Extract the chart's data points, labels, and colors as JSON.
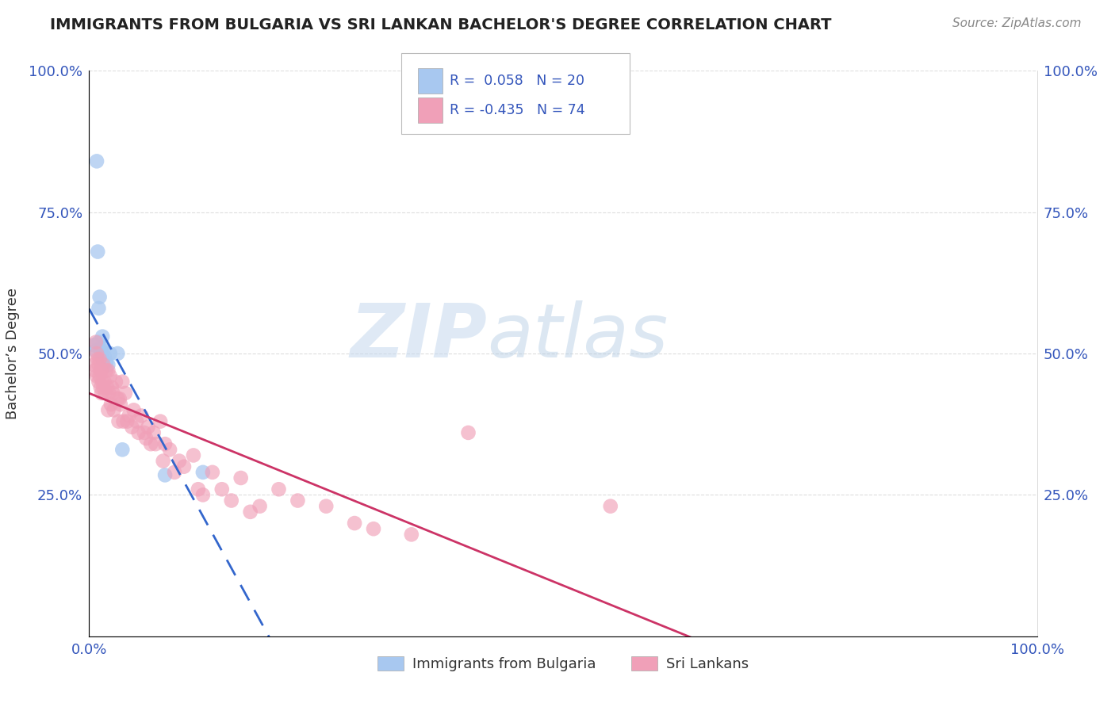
{
  "title": "IMMIGRANTS FROM BULGARIA VS SRI LANKAN BACHELOR'S DEGREE CORRELATION CHART",
  "source": "Source: ZipAtlas.com",
  "ylabel": "Bachelor’s Degree",
  "r_bulgaria": 0.058,
  "n_bulgaria": 20,
  "r_srilanka": -0.435,
  "n_srilanka": 74,
  "color_bulgaria": "#a8c8f0",
  "color_srilanka": "#f0a0b8",
  "line_color_bulgaria": "#3366cc",
  "line_color_srilanka": "#cc3366",
  "watermark_zip": "ZIP",
  "watermark_atlas": "atlas",
  "background_color": "#ffffff",
  "legend_text_color": "#3355bb",
  "tick_color": "#3355bb",
  "title_color": "#222222",
  "source_color": "#888888",
  "grid_color": "#dddddd",
  "bulgaria_points_x": [
    0.005,
    0.007,
    0.008,
    0.009,
    0.01,
    0.01,
    0.011,
    0.012,
    0.013,
    0.014,
    0.014,
    0.015,
    0.016,
    0.018,
    0.02,
    0.022,
    0.03,
    0.035,
    0.08,
    0.12
  ],
  "bulgaria_points_y": [
    0.515,
    0.505,
    0.84,
    0.68,
    0.52,
    0.58,
    0.6,
    0.505,
    0.51,
    0.53,
    0.49,
    0.505,
    0.495,
    0.485,
    0.48,
    0.5,
    0.5,
    0.33,
    0.285,
    0.29
  ],
  "srilanka_points_x": [
    0.005,
    0.006,
    0.007,
    0.008,
    0.008,
    0.009,
    0.01,
    0.01,
    0.011,
    0.011,
    0.012,
    0.012,
    0.013,
    0.013,
    0.014,
    0.015,
    0.015,
    0.016,
    0.017,
    0.018,
    0.019,
    0.02,
    0.02,
    0.021,
    0.022,
    0.023,
    0.024,
    0.025,
    0.026,
    0.028,
    0.03,
    0.031,
    0.032,
    0.033,
    0.035,
    0.036,
    0.038,
    0.04,
    0.042,
    0.045,
    0.047,
    0.05,
    0.052,
    0.055,
    0.058,
    0.06,
    0.062,
    0.065,
    0.068,
    0.07,
    0.075,
    0.078,
    0.08,
    0.085,
    0.09,
    0.095,
    0.1,
    0.11,
    0.115,
    0.12,
    0.13,
    0.14,
    0.15,
    0.16,
    0.17,
    0.18,
    0.2,
    0.22,
    0.25,
    0.28,
    0.3,
    0.34,
    0.4,
    0.55
  ],
  "srilanka_points_y": [
    0.48,
    0.47,
    0.52,
    0.5,
    0.46,
    0.49,
    0.45,
    0.48,
    0.46,
    0.49,
    0.44,
    0.47,
    0.47,
    0.43,
    0.45,
    0.48,
    0.44,
    0.45,
    0.43,
    0.47,
    0.44,
    0.47,
    0.4,
    0.43,
    0.46,
    0.41,
    0.44,
    0.43,
    0.4,
    0.45,
    0.42,
    0.38,
    0.42,
    0.41,
    0.45,
    0.38,
    0.43,
    0.38,
    0.39,
    0.37,
    0.4,
    0.38,
    0.36,
    0.39,
    0.36,
    0.35,
    0.37,
    0.34,
    0.36,
    0.34,
    0.38,
    0.31,
    0.34,
    0.33,
    0.29,
    0.31,
    0.3,
    0.32,
    0.26,
    0.25,
    0.29,
    0.26,
    0.24,
    0.28,
    0.22,
    0.23,
    0.26,
    0.24,
    0.23,
    0.2,
    0.19,
    0.18,
    0.36,
    0.23
  ]
}
